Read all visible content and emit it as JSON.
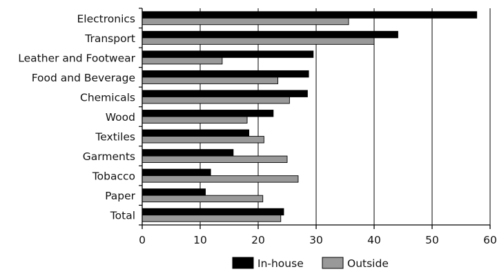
{
  "chart_data": {
    "type": "bar",
    "orientation": "horizontal",
    "categories": [
      "Electronics",
      "Transport",
      "Leather and Footwear",
      "Food and Beverage",
      "Chemicals",
      "Wood",
      "Textiles",
      "Garments",
      "Tobacco",
      "Paper",
      "Total"
    ],
    "series": [
      {
        "name": "In-house",
        "color": "#000000",
        "values": [
          57.7,
          44.1,
          29.5,
          28.7,
          28.5,
          22.6,
          18.4,
          15.7,
          11.8,
          10.9,
          24.4
        ]
      },
      {
        "name": "Outside",
        "color": "#999999",
        "values": [
          35.6,
          40.0,
          13.8,
          23.4,
          25.4,
          18.1,
          21.0,
          25.0,
          26.9,
          20.8,
          23.9
        ]
      }
    ],
    "xlim": [
      0,
      60
    ],
    "xticks": [
      0,
      10,
      20,
      30,
      40,
      50,
      60
    ],
    "xgrid": true,
    "legend_position": "bottom-center",
    "title": "",
    "xlabel": "",
    "ylabel": ""
  }
}
